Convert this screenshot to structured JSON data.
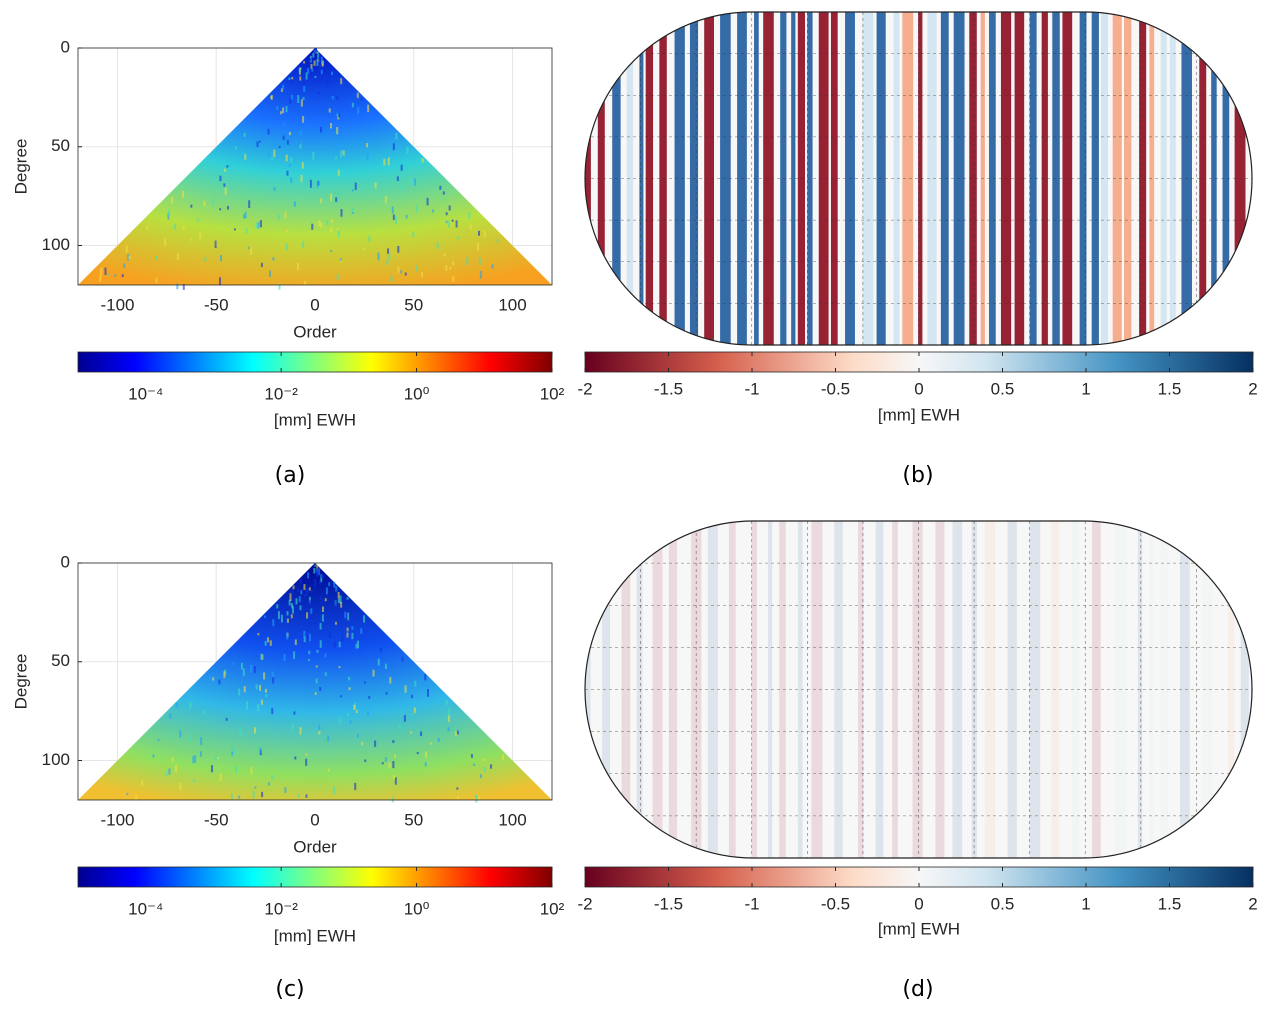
{
  "chart_data": [
    {
      "type": "heatmap",
      "xlabel": "Order",
      "ylabel": "Degree",
      "xlim": [
        -120,
        120
      ],
      "ylim": [
        0,
        120
      ],
      "xticks": [
        -100,
        -50,
        0,
        50,
        100
      ],
      "yticks": [
        0,
        50,
        100
      ],
      "grid": true,
      "colorbar": {
        "label": "[mm] EWH",
        "scale": "log",
        "lim": [
          1e-05,
          100
        ],
        "ticks": [
          {
            "value": 0.0001,
            "label": "10⁻⁴"
          },
          {
            "value": 0.01,
            "label": "10⁻²"
          },
          {
            "value": 1,
            "label": "10⁰"
          },
          {
            "value": 100,
            "label": "10²"
          }
        ]
      },
      "panel_label": "(a)"
    },
    {
      "type": "map",
      "colorbar": {
        "label": "[mm] EWH",
        "scale": "linear",
        "lim": [
          -2,
          2
        ],
        "ticks": [
          -2,
          -1.5,
          -1,
          -0.5,
          0,
          0.5,
          1,
          1.5,
          2
        ]
      },
      "panel_label": "(b)"
    },
    {
      "type": "heatmap",
      "xlabel": "Order",
      "ylabel": "Degree",
      "xlim": [
        -120,
        120
      ],
      "ylim": [
        0,
        120
      ],
      "xticks": [
        -100,
        -50,
        0,
        50,
        100
      ],
      "yticks": [
        0,
        50,
        100
      ],
      "grid": true,
      "colorbar": {
        "label": "[mm] EWH",
        "scale": "log",
        "lim": [
          1e-05,
          100
        ],
        "ticks": [
          {
            "value": 0.0001,
            "label": "10⁻⁴"
          },
          {
            "value": 0.01,
            "label": "10⁻²"
          },
          {
            "value": 1,
            "label": "10⁰"
          },
          {
            "value": 100,
            "label": "10²"
          }
        ]
      },
      "panel_label": "(c)"
    },
    {
      "type": "map",
      "colorbar": {
        "label": "[mm] EWH",
        "scale": "linear",
        "lim": [
          -2,
          2
        ],
        "ticks": [
          -2,
          -1.5,
          -1,
          -0.5,
          0,
          0.5,
          1,
          1.5,
          2
        ]
      },
      "panel_label": "(d)"
    }
  ]
}
